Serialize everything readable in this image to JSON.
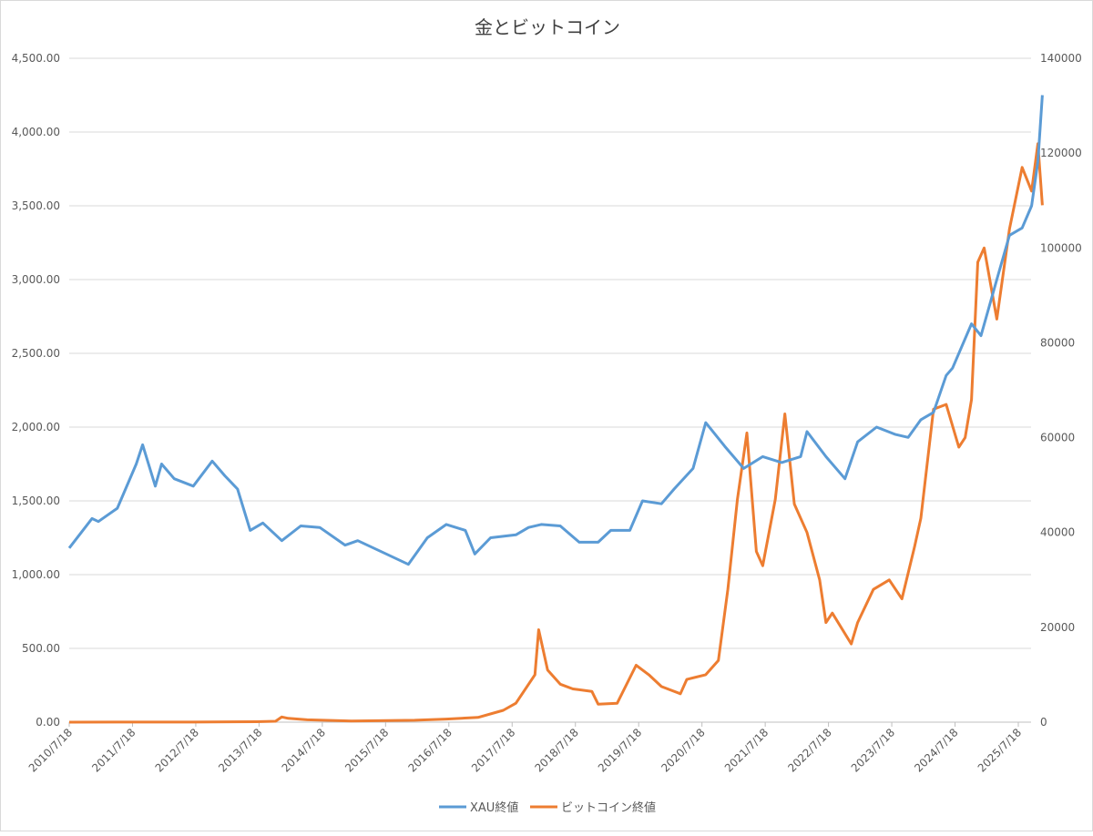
{
  "chart_data": {
    "type": "line",
    "title": "金とビットコイン",
    "x_tick_labels": [
      "2010/7/18",
      "2011/7/18",
      "2012/7/18",
      "2013/7/18",
      "2014/7/18",
      "2015/7/18",
      "2016/7/18",
      "2017/7/18",
      "2018/7/18",
      "2019/7/18",
      "2020/7/18",
      "2021/7/18",
      "2022/7/18",
      "2023/7/18",
      "2024/7/18",
      "2025/7/18"
    ],
    "xlim": [
      2010.54,
      2025.95
    ],
    "left_axis": {
      "ylim": [
        0,
        4500
      ],
      "ticks": [
        "0.00",
        "500.00",
        "1,000.00",
        "1,500.00",
        "2,000.00",
        "2,500.00",
        "3,000.00",
        "3,500.00",
        "4,000.00",
        "4,500.00"
      ]
    },
    "right_axis": {
      "ylim": [
        0,
        140000
      ],
      "ticks": [
        "0",
        "20000",
        "40000",
        "60000",
        "80000",
        "100000",
        "120000",
        "140000"
      ]
    },
    "grid": true,
    "legend_position": "bottom",
    "series": [
      {
        "name": "XAU終値",
        "axis": "left",
        "color": "#5b9bd5",
        "x": [
          2010.54,
          2010.9,
          2011.0,
          2011.3,
          2011.6,
          2011.7,
          2011.9,
          2012.0,
          2012.2,
          2012.5,
          2012.8,
          2013.0,
          2013.2,
          2013.4,
          2013.6,
          2013.9,
          2014.2,
          2014.5,
          2014.9,
          2015.1,
          2015.5,
          2015.9,
          2016.2,
          2016.5,
          2016.8,
          2016.95,
          2017.2,
          2017.6,
          2017.8,
          2018.0,
          2018.3,
          2018.6,
          2018.9,
          2019.1,
          2019.4,
          2019.6,
          2019.9,
          2020.1,
          2020.4,
          2020.6,
          2020.9,
          2021.2,
          2021.5,
          2021.8,
          2022.1,
          2022.2,
          2022.5,
          2022.8,
          2023.0,
          2023.3,
          2023.6,
          2023.8,
          2024.0,
          2024.2,
          2024.4,
          2024.5,
          2024.8,
          2024.95,
          2025.2,
          2025.4,
          2025.6,
          2025.75,
          2025.85,
          2025.92
        ],
        "y": [
          1180,
          1380,
          1360,
          1450,
          1750,
          1880,
          1600,
          1750,
          1650,
          1600,
          1770,
          1670,
          1580,
          1300,
          1350,
          1230,
          1330,
          1320,
          1200,
          1230,
          1150,
          1070,
          1250,
          1340,
          1300,
          1140,
          1250,
          1270,
          1320,
          1340,
          1330,
          1220,
          1220,
          1300,
          1300,
          1500,
          1480,
          1580,
          1720,
          2030,
          1870,
          1720,
          1800,
          1760,
          1800,
          1970,
          1800,
          1650,
          1900,
          2000,
          1950,
          1930,
          2050,
          2100,
          2350,
          2400,
          2700,
          2620,
          3000,
          3300,
          3350,
          3500,
          3800,
          4250
        ]
      },
      {
        "name": "ビットコイン終値",
        "axis": "right",
        "color": "#ed7d31",
        "x": [
          2010.54,
          2011.5,
          2012.5,
          2013.5,
          2013.8,
          2013.9,
          2014.0,
          2014.3,
          2015.0,
          2016.0,
          2016.5,
          2017.0,
          2017.4,
          2017.6,
          2017.9,
          2017.96,
          2018.1,
          2018.3,
          2018.5,
          2018.8,
          2018.9,
          2019.2,
          2019.5,
          2019.7,
          2019.9,
          2020.2,
          2020.3,
          2020.6,
          2020.8,
          2020.95,
          2021.1,
          2021.25,
          2021.4,
          2021.5,
          2021.7,
          2021.85,
          2022.0,
          2022.2,
          2022.4,
          2022.5,
          2022.6,
          2022.9,
          2023.0,
          2023.25,
          2023.5,
          2023.7,
          2023.9,
          2024.0,
          2024.2,
          2024.4,
          2024.6,
          2024.7,
          2024.8,
          2024.9,
          2025.0,
          2025.2,
          2025.4,
          2025.6,
          2025.75,
          2025.85,
          2025.92
        ],
        "y": [
          0,
          10,
          10,
          100,
          200,
          1100,
          800,
          500,
          250,
          400,
          650,
          1000,
          2500,
          4000,
          10000,
          19500,
          11000,
          8000,
          7000,
          6500,
          3800,
          4000,
          12000,
          10000,
          7500,
          6000,
          9000,
          10000,
          13000,
          28000,
          47000,
          61000,
          36000,
          33000,
          47000,
          65000,
          46000,
          40000,
          30000,
          21000,
          23000,
          16500,
          21000,
          28000,
          30000,
          26000,
          37000,
          43000,
          66000,
          67000,
          58000,
          60000,
          68000,
          97000,
          100000,
          85000,
          104000,
          117000,
          112000,
          122000,
          109000
        ]
      }
    ]
  }
}
